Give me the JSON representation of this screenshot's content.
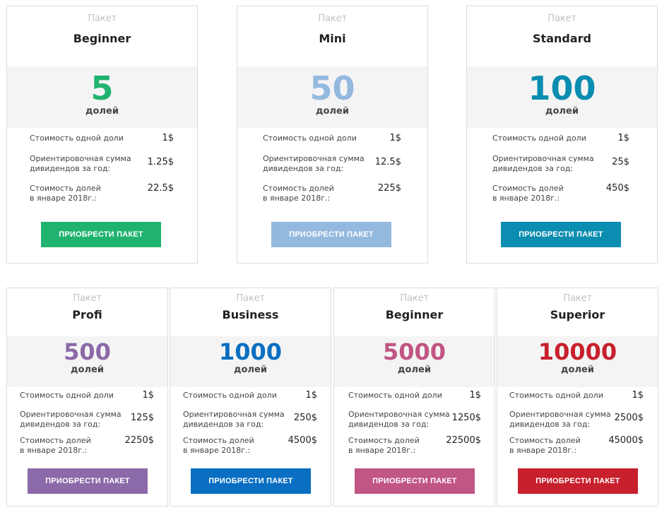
{
  "common": {
    "kicker": "Пакет",
    "unit": "долей",
    "row1_label": "Стоимость одной доли",
    "row2_label_line1": "Ориентировочная сумма",
    "row2_label_line2": "дивидендов за год:",
    "row3_label_line1": "Стоимость долей",
    "row3_label_line2": "в январе 2018г.:",
    "button_label": "ПРИОБРЕСТИ ПАКЕТ"
  },
  "packages": [
    {
      "name": "Beginner",
      "count": "5",
      "share_price": "1$",
      "dividends": "1.25$",
      "jan_value": "22.5$",
      "color": "#1fb36f"
    },
    {
      "name": "Mini",
      "count": "50",
      "share_price": "1$",
      "dividends": "12.5$",
      "jan_value": "225$",
      "color": "#94b9df"
    },
    {
      "name": "Standard",
      "count": "100",
      "share_price": "1$",
      "dividends": "25$",
      "jan_value": "450$",
      "color": "#0a8db0"
    },
    {
      "name": "Profi",
      "count": "500",
      "share_price": "1$",
      "dividends": "125$",
      "jan_value": "2250$",
      "color": "#8c69a8"
    },
    {
      "name": "Business",
      "count": "1000",
      "share_price": "1$",
      "dividends": "250$",
      "jan_value": "4500$",
      "color": "#0a6fc2"
    },
    {
      "name": "Beginner",
      "count": "5000",
      "share_price": "1$",
      "dividends": "1250$",
      "jan_value": "22500$",
      "color": "#c15583"
    },
    {
      "name": "Superior",
      "count": "10000",
      "share_price": "1$",
      "dividends": "2500$",
      "jan_value": "45000$",
      "color": "#c8202d"
    }
  ]
}
